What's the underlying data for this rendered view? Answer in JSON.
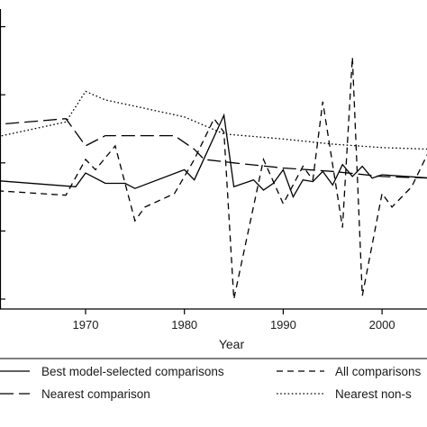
{
  "chart_data": {
    "type": "line",
    "title": "",
    "xlabel": "Year",
    "ylabel": "",
    "xlim": [
      1960,
      2005
    ],
    "ylim": [
      0,
      10
    ],
    "x_ticks": [
      1970,
      1980,
      1990,
      2000
    ],
    "y_ticks": [
      0.5,
      2.5,
      4.5,
      6.5,
      8.5
    ],
    "grid": false,
    "legend_position": "bottom",
    "series": [
      {
        "name": "Best model-selected comparisons",
        "line_style": "solid",
        "color": "#000000",
        "points": [
          [
            1960,
            4.0
          ],
          [
            1969,
            3.8
          ],
          [
            1970,
            4.2
          ],
          [
            1972,
            3.9
          ],
          [
            1974,
            3.9
          ],
          [
            1975,
            3.75
          ],
          [
            1980,
            4.3
          ],
          [
            1981,
            4.0
          ],
          [
            1984,
            5.9
          ],
          [
            1985,
            3.8
          ],
          [
            1987,
            4.0
          ],
          [
            1988,
            3.7
          ],
          [
            1989,
            3.9
          ],
          [
            1990,
            4.3
          ],
          [
            1991,
            3.5
          ],
          [
            1992,
            4.0
          ],
          [
            1993,
            3.95
          ],
          [
            1994,
            4.25
          ],
          [
            1995,
            3.85
          ],
          [
            1996,
            4.45
          ],
          [
            1997,
            4.1
          ],
          [
            1998,
            4.4
          ],
          [
            1999,
            4.05
          ],
          [
            2000,
            4.15
          ],
          [
            2005,
            4.05
          ]
        ]
      },
      {
        "name": "All comparisons",
        "line_style": "dashed",
        "color": "#000000",
        "points": [
          [
            1960,
            3.7
          ],
          [
            1968,
            3.55
          ],
          [
            1970,
            4.6
          ],
          [
            1971,
            4.3
          ],
          [
            1973,
            5.0
          ],
          [
            1975,
            2.8
          ],
          [
            1976,
            3.2
          ],
          [
            1979,
            3.6
          ],
          [
            1981,
            4.6
          ],
          [
            1983,
            5.8
          ],
          [
            1984,
            5.4
          ],
          [
            1985,
            0.5
          ],
          [
            1988,
            4.6
          ],
          [
            1990,
            3.3
          ],
          [
            1992,
            4.4
          ],
          [
            1993,
            4.0
          ],
          [
            1994,
            6.3
          ],
          [
            1996,
            2.6
          ],
          [
            1997,
            7.6
          ],
          [
            1998,
            0.6
          ],
          [
            2000,
            3.6
          ],
          [
            2001,
            3.2
          ],
          [
            2003,
            3.8
          ],
          [
            2005,
            5.0
          ]
        ]
      },
      {
        "name": "Nearest comparison",
        "line_style": "longdash",
        "color": "#000000",
        "points": [
          [
            1960,
            5.6
          ],
          [
            1968,
            5.8
          ],
          [
            1970,
            5.0
          ],
          [
            1972,
            5.3
          ],
          [
            1974,
            5.3
          ],
          [
            1976,
            5.3
          ],
          [
            1979,
            5.3
          ],
          [
            1981,
            4.9
          ],
          [
            1982,
            4.6
          ],
          [
            1985,
            4.5
          ],
          [
            1990,
            4.35
          ],
          [
            1995,
            4.25
          ],
          [
            2000,
            4.1
          ],
          [
            2005,
            4.05
          ]
        ]
      },
      {
        "name": "Nearest non-s",
        "line_style": "dotted",
        "color": "#000000",
        "points": [
          [
            1960,
            5.2
          ],
          [
            1968,
            5.7
          ],
          [
            1970,
            6.6
          ],
          [
            1972,
            6.35
          ],
          [
            1976,
            6.1
          ],
          [
            1980,
            5.85
          ],
          [
            1984,
            5.35
          ],
          [
            1990,
            5.2
          ],
          [
            1995,
            5.05
          ],
          [
            2000,
            4.95
          ],
          [
            2005,
            4.9
          ]
        ]
      }
    ]
  }
}
